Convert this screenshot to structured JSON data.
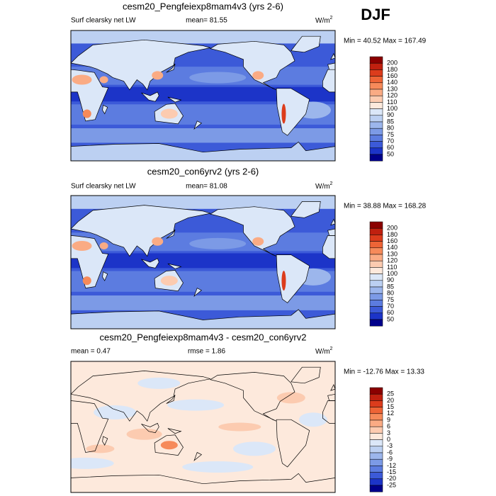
{
  "season": "DJF",
  "panels": [
    {
      "title": "cesm20_Pengfeiexp8mam4v3 (yrs 2-6)",
      "left_text": "Surf clearsky net LW",
      "center_text": "mean=  81.55",
      "units": "W/m",
      "units_sup": "2",
      "min_max": "Min =  40.52 Max = 167.49",
      "colorbar_labels": [
        "200",
        "180",
        "160",
        "140",
        "130",
        "120",
        "110",
        "100",
        "90",
        "85",
        "80",
        "75",
        "70",
        "60",
        "50"
      ]
    },
    {
      "title": "cesm20_con6yrv2 (yrs 2-6)",
      "left_text": "Surf clearsky net LW",
      "center_text": "mean=  81.08",
      "units": "W/m",
      "units_sup": "2",
      "min_max": "Min =  38.88 Max = 168.28",
      "colorbar_labels": [
        "200",
        "180",
        "160",
        "140",
        "130",
        "120",
        "110",
        "100",
        "90",
        "85",
        "80",
        "75",
        "70",
        "60",
        "50"
      ]
    },
    {
      "title": "cesm20_Pengfeiexp8mam4v3 - cesm20_con6yrv2",
      "left_text": "mean =   0.47",
      "center_text": "rmse =   1.86",
      "units": "W/m",
      "units_sup": "2",
      "min_max": "Min = -12.76 Max =  13.33",
      "colorbar_labels": [
        "25",
        "20",
        "15",
        "12",
        "9",
        "6",
        "3",
        "0",
        "-3",
        "-6",
        "-9",
        "-12",
        "-15",
        "-20",
        "-25"
      ]
    }
  ],
  "colorbar_colors": [
    "#8b0000",
    "#c0200f",
    "#dc3c1c",
    "#ee6436",
    "#f68a5a",
    "#faab84",
    "#fccbb0",
    "#fde9dc",
    "#dbe7f8",
    "#bcd0f2",
    "#9cb6ec",
    "#7c9ae6",
    "#5c7ce0",
    "#3c5ad8",
    "#1c34c8",
    "#00008b"
  ]
}
